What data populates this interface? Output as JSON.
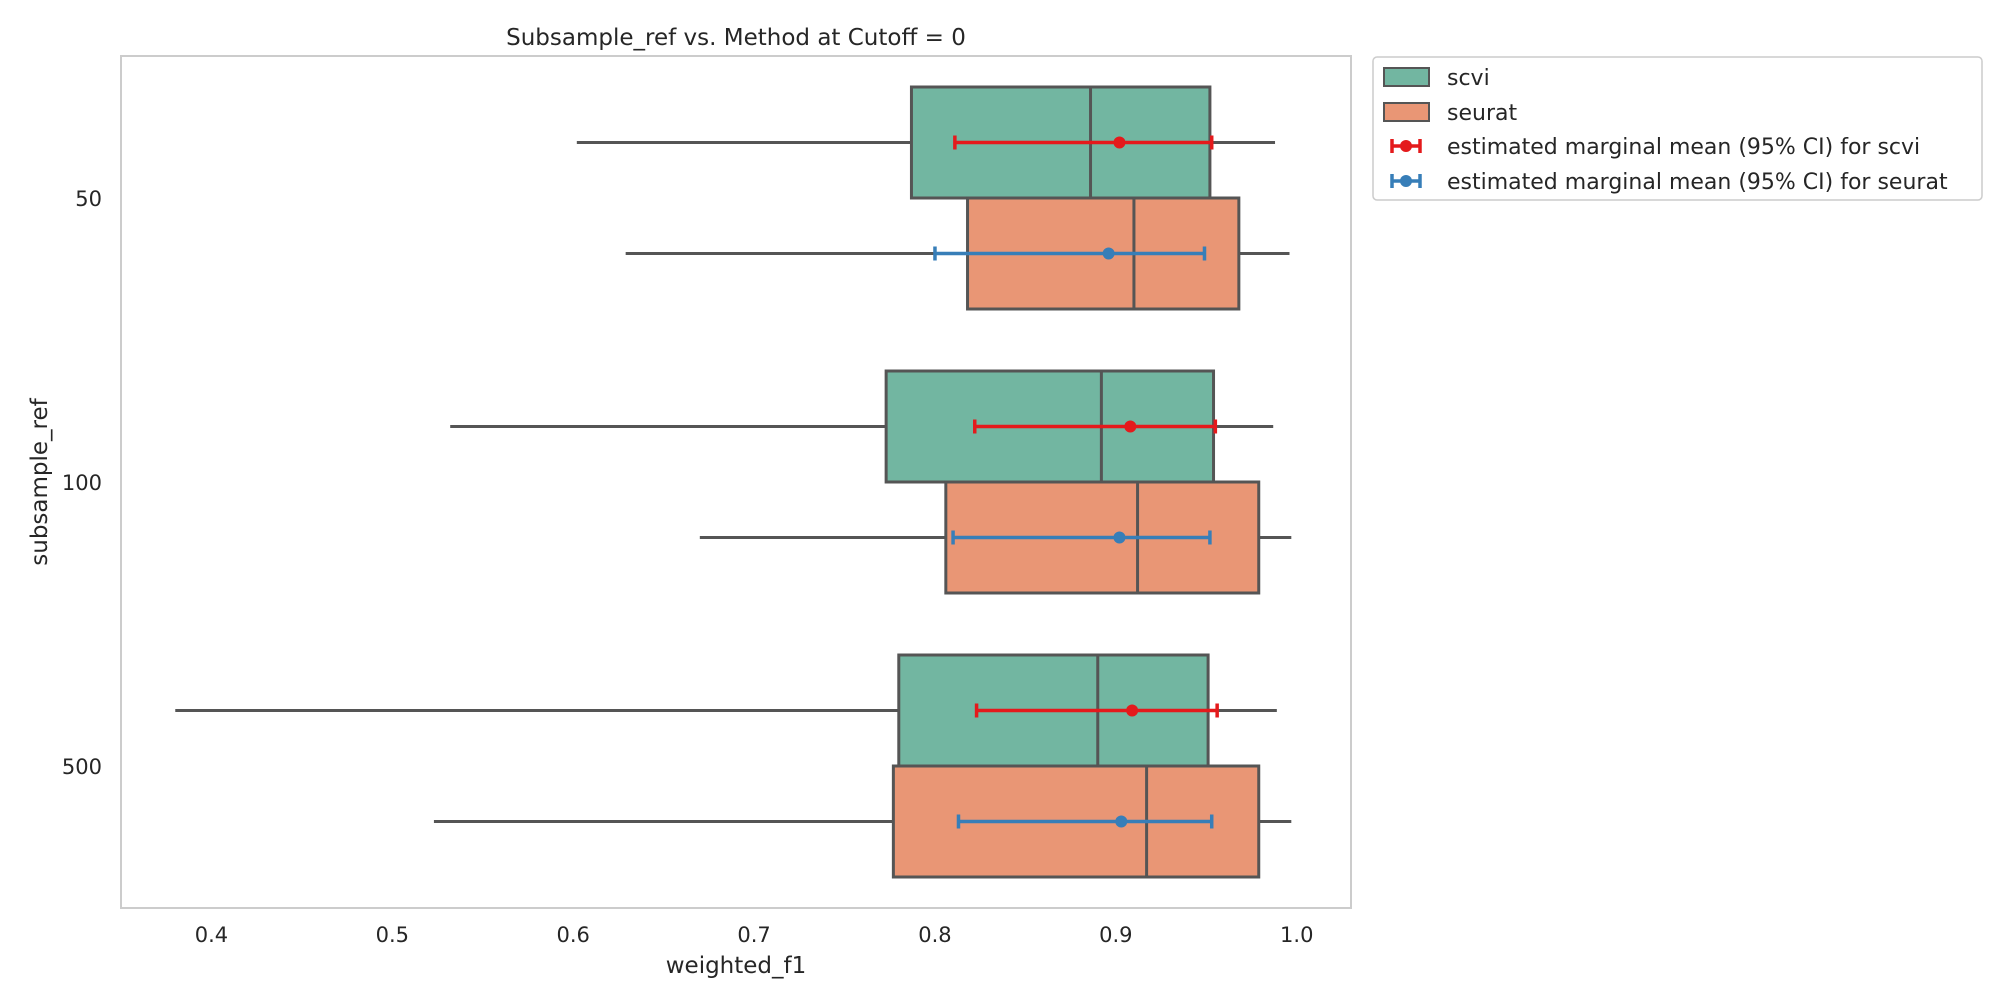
{
  "chart_data": {
    "type": "box",
    "orientation": "horizontal",
    "title": "Subsample_ref vs. Method at Cutoff = 0",
    "xlabel": "weighted_f1",
    "ylabel": "subsample_ref",
    "xlim": [
      0.35,
      1.03
    ],
    "xticks": [
      "0.4",
      "0.5",
      "0.6",
      "0.7",
      "0.8",
      "0.9",
      "1.0"
    ],
    "categories": [
      "50",
      "100",
      "500"
    ],
    "grid": false,
    "legend_position": "outside-top-right",
    "series": [
      {
        "name": "scvi",
        "color": "#72b6a1",
        "boxes": [
          {
            "category": "50",
            "whisker_low": 0.602,
            "q1": 0.787,
            "median": 0.886,
            "q3": 0.952,
            "whisker_high": 0.988
          },
          {
            "category": "100",
            "whisker_low": 0.532,
            "q1": 0.773,
            "median": 0.892,
            "q3": 0.954,
            "whisker_high": 0.987
          },
          {
            "category": "500",
            "whisker_low": 0.38,
            "q1": 0.78,
            "median": 0.89,
            "q3": 0.951,
            "whisker_high": 0.989
          }
        ]
      },
      {
        "name": "seurat",
        "color": "#e99675",
        "boxes": [
          {
            "category": "50",
            "whisker_low": 0.629,
            "q1": 0.818,
            "median": 0.91,
            "q3": 0.968,
            "whisker_high": 0.996
          },
          {
            "category": "100",
            "whisker_low": 0.67,
            "q1": 0.806,
            "median": 0.912,
            "q3": 0.979,
            "whisker_high": 0.997
          },
          {
            "category": "500",
            "whisker_low": 0.523,
            "q1": 0.777,
            "median": 0.917,
            "q3": 0.979,
            "whisker_high": 0.997
          }
        ]
      }
    ],
    "marginal_means": [
      {
        "name": "estimated marginal mean (95% CI) for scvi",
        "color": "#e41a1c",
        "points": [
          {
            "category": "50",
            "mean": 0.902,
            "ci_low": 0.811,
            "ci_high": 0.953
          },
          {
            "category": "100",
            "mean": 0.908,
            "ci_low": 0.822,
            "ci_high": 0.955
          },
          {
            "category": "500",
            "mean": 0.909,
            "ci_low": 0.823,
            "ci_high": 0.956
          }
        ]
      },
      {
        "name": "estimated marginal mean (95% CI) for seurat",
        "color": "#377eb8",
        "points": [
          {
            "category": "50",
            "mean": 0.896,
            "ci_low": 0.8,
            "ci_high": 0.949
          },
          {
            "category": "100",
            "mean": 0.902,
            "ci_low": 0.81,
            "ci_high": 0.952
          },
          {
            "category": "500",
            "mean": 0.903,
            "ci_low": 0.813,
            "ci_high": 0.953
          }
        ]
      }
    ]
  }
}
